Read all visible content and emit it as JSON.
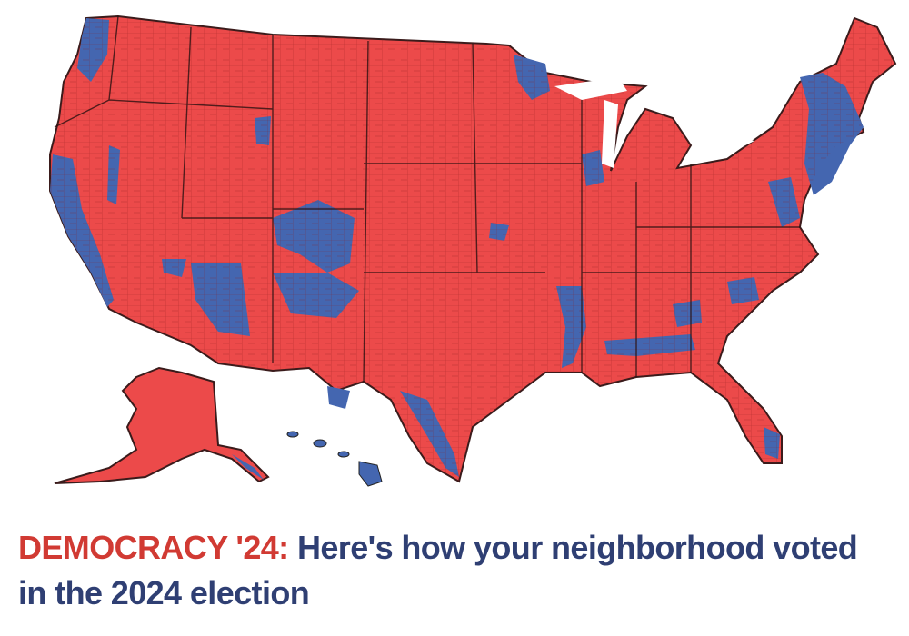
{
  "headline": {
    "kicker": "DEMOCRACY '24:",
    "title": "Here's how your neighborhood voted in the 2024 election"
  }
}
